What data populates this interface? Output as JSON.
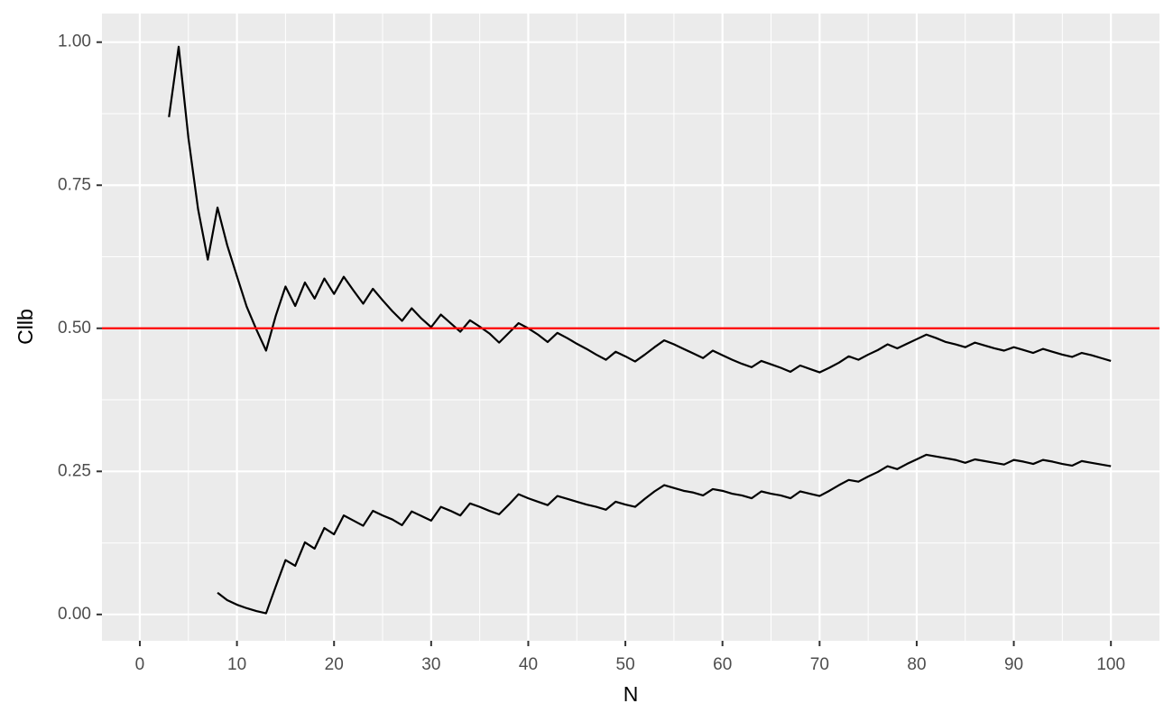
{
  "chart_data": {
    "type": "line",
    "x_label": "N",
    "y_label": "Cllb",
    "x": [
      3,
      4,
      5,
      6,
      7,
      8,
      9,
      10,
      11,
      12,
      13,
      14,
      15,
      16,
      17,
      18,
      19,
      20,
      21,
      22,
      23,
      24,
      25,
      26,
      27,
      28,
      29,
      30,
      31,
      32,
      33,
      34,
      35,
      36,
      37,
      38,
      39,
      40,
      41,
      42,
      43,
      44,
      45,
      46,
      47,
      48,
      49,
      50,
      51,
      52,
      53,
      54,
      55,
      56,
      57,
      58,
      59,
      60,
      61,
      62,
      63,
      64,
      65,
      66,
      67,
      68,
      69,
      70,
      71,
      72,
      73,
      74,
      75,
      76,
      77,
      78,
      79,
      80,
      81,
      82,
      83,
      84,
      85,
      86,
      87,
      88,
      89,
      90,
      91,
      92,
      93,
      94,
      95,
      96,
      97,
      98,
      99,
      100
    ],
    "series": [
      {
        "color": "#000000",
        "values": [
          0.869,
          0.992,
          0.833,
          0.708,
          0.62,
          0.711,
          0.645,
          0.591,
          0.538,
          0.498,
          0.461,
          0.522,
          0.573,
          0.539,
          0.58,
          0.552,
          0.587,
          0.56,
          0.59,
          0.566,
          0.543,
          0.569,
          0.549,
          0.53,
          0.513,
          0.535,
          0.517,
          0.502,
          0.524,
          0.509,
          0.494,
          0.514,
          0.503,
          0.491,
          0.475,
          0.492,
          0.509,
          0.5,
          0.489,
          0.476,
          0.492,
          0.483,
          0.473,
          0.464,
          0.454,
          0.445,
          0.459,
          0.451,
          0.442,
          0.454,
          0.467,
          0.479,
          0.472,
          0.464,
          0.456,
          0.448,
          0.461,
          0.453,
          0.445,
          0.438,
          0.432,
          0.443,
          0.437,
          0.431,
          0.424,
          0.435,
          0.429,
          0.423,
          0.431,
          0.44,
          0.451,
          0.445,
          0.454,
          0.462,
          0.472,
          0.465,
          0.473,
          0.481,
          0.489,
          0.483,
          0.476,
          0.472,
          0.467,
          0.475,
          0.47,
          0.465,
          0.461,
          0.467,
          0.462,
          0.457,
          0.464,
          0.459,
          0.454,
          0.45,
          0.457,
          0.453,
          0.448,
          0.443
        ]
      },
      {
        "color": "#000000",
        "values": [
          null,
          null,
          null,
          null,
          null,
          0.038,
          0.025,
          0.017,
          0.011,
          0.006,
          0.002,
          0.049,
          0.095,
          0.085,
          0.126,
          0.115,
          0.151,
          0.14,
          0.173,
          0.164,
          0.155,
          0.181,
          0.173,
          0.166,
          0.156,
          0.18,
          0.172,
          0.164,
          0.188,
          0.181,
          0.173,
          0.194,
          0.188,
          0.181,
          0.175,
          0.192,
          0.21,
          0.203,
          0.197,
          0.191,
          0.207,
          0.202,
          0.197,
          0.192,
          0.188,
          0.183,
          0.197,
          0.192,
          0.188,
          0.202,
          0.215,
          0.226,
          0.221,
          0.216,
          0.213,
          0.208,
          0.219,
          0.216,
          0.211,
          0.208,
          0.203,
          0.215,
          0.211,
          0.208,
          0.203,
          0.215,
          0.211,
          0.207,
          0.216,
          0.226,
          0.235,
          0.232,
          0.241,
          0.249,
          0.259,
          0.254,
          0.263,
          0.271,
          0.279,
          0.276,
          0.273,
          0.27,
          0.265,
          0.271,
          0.268,
          0.265,
          0.262,
          0.27,
          0.267,
          0.263,
          0.27,
          0.267,
          0.263,
          0.26,
          0.268,
          0.265,
          0.262,
          0.259
        ]
      }
    ],
    "hline": {
      "value": 0.5,
      "color": "#ff0000"
    },
    "xlim": [
      -3.9,
      105
    ],
    "ylim": [
      -0.046,
      1.05
    ],
    "xticks": [
      0,
      10,
      20,
      30,
      40,
      50,
      60,
      70,
      80,
      90,
      100
    ],
    "yticks": [
      {
        "value": 0,
        "label": "0.00"
      },
      {
        "value": 0.25,
        "label": "0.25"
      },
      {
        "value": 0.5,
        "label": "0.50"
      },
      {
        "value": 0.75,
        "label": "0.75"
      },
      {
        "value": 1,
        "label": "1.00"
      }
    ],
    "x_minor_grid": [
      5,
      15,
      25,
      35,
      45,
      55,
      65,
      75,
      85,
      95
    ],
    "y_minor_grid": [
      0.125,
      0.375,
      0.625,
      0.875
    ],
    "grid": true
  }
}
